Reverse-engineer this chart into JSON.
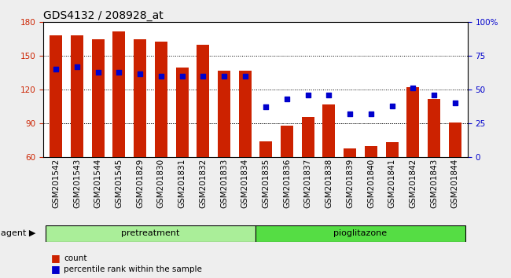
{
  "title": "GDS4132 / 208928_at",
  "categories": [
    "GSM201542",
    "GSM201543",
    "GSM201544",
    "GSM201545",
    "GSM201829",
    "GSM201830",
    "GSM201831",
    "GSM201832",
    "GSM201833",
    "GSM201834",
    "GSM201835",
    "GSM201836",
    "GSM201837",
    "GSM201838",
    "GSM201839",
    "GSM201840",
    "GSM201841",
    "GSM201842",
    "GSM201843",
    "GSM201844"
  ],
  "bar_values": [
    168,
    168,
    165,
    172,
    165,
    163,
    140,
    160,
    137,
    137,
    74,
    88,
    96,
    107,
    68,
    70,
    73,
    122,
    112,
    91
  ],
  "bar_bottom": 60,
  "percentile_values": [
    65,
    67,
    63,
    63,
    62,
    60,
    60,
    60,
    60,
    60,
    37,
    43,
    46,
    46,
    32,
    32,
    38,
    51,
    46,
    40
  ],
  "bar_color": "#cc2200",
  "dot_color": "#0000cc",
  "ylim_left": [
    60,
    180
  ],
  "ylim_right": [
    0,
    100
  ],
  "yticks_left": [
    60,
    90,
    120,
    150,
    180
  ],
  "yticks_right": [
    0,
    25,
    50,
    75,
    100
  ],
  "grid_values": [
    90,
    120,
    150
  ],
  "pretreatment_range": [
    0,
    9
  ],
  "pioglitazone_range": [
    10,
    19
  ],
  "pretreatment_color": "#aaee99",
  "pioglitazone_color": "#55dd44",
  "agent_label": "agent",
  "legend_count_label": "count",
  "legend_pct_label": "percentile rank within the sample",
  "bar_width": 0.6,
  "ticklabel_bg_color": "#cccccc",
  "plot_bg_color": "#ffffff",
  "fig_bg_color": "#eeeeee",
  "title_fontsize": 10,
  "label_fontsize": 8,
  "tick_fontsize": 7.5
}
